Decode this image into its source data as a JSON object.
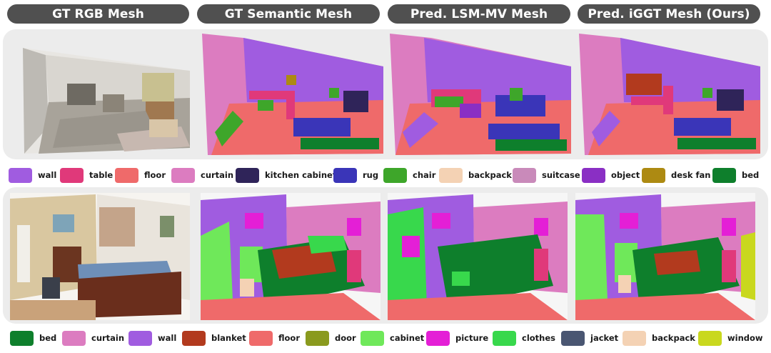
{
  "headers": [
    "GT RGB Mesh",
    "GT Semantic Mesh",
    "Pred. LSM-MV Mesh",
    "Pred. iGGT Mesh (Ours)"
  ],
  "legend_top": [
    {
      "label": "wall",
      "color": "#a05ce0"
    },
    {
      "label": "table",
      "color": "#e0397a"
    },
    {
      "label": "floor",
      "color": "#ef6a6a"
    },
    {
      "label": "curtain",
      "color": "#dc7cc0"
    },
    {
      "label": "kitchen cabinet",
      "color": "#2f2459"
    },
    {
      "label": "rug",
      "color": "#3a35b8"
    },
    {
      "label": "chair",
      "color": "#3ea62a"
    },
    {
      "label": "backpack",
      "color": "#f4d2b4"
    },
    {
      "label": "suitcase",
      "color": "#c98aba"
    },
    {
      "label": "object",
      "color": "#8a2fc4"
    },
    {
      "label": "desk fan",
      "color": "#ad8a12"
    },
    {
      "label": "bed",
      "color": "#0e7f2c"
    }
  ],
  "legend_bottom": [
    {
      "label": "bed",
      "color": "#0e7f2c"
    },
    {
      "label": "curtain",
      "color": "#dc7cc0"
    },
    {
      "label": "wall",
      "color": "#a05ce0"
    },
    {
      "label": "blanket",
      "color": "#b23a1e"
    },
    {
      "label": "floor",
      "color": "#ef6a6a"
    },
    {
      "label": "door",
      "color": "#8a9a1e"
    },
    {
      "label": "cabinet",
      "color": "#6fe85a"
    },
    {
      "label": "picture",
      "color": "#e41fd6"
    },
    {
      "label": "clothes",
      "color": "#38d84c"
    },
    {
      "label": "jacket",
      "color": "#4a5672"
    },
    {
      "label": "backpack",
      "color": "#f4d2b4"
    },
    {
      "label": "window",
      "color": "#c9d81e"
    }
  ]
}
